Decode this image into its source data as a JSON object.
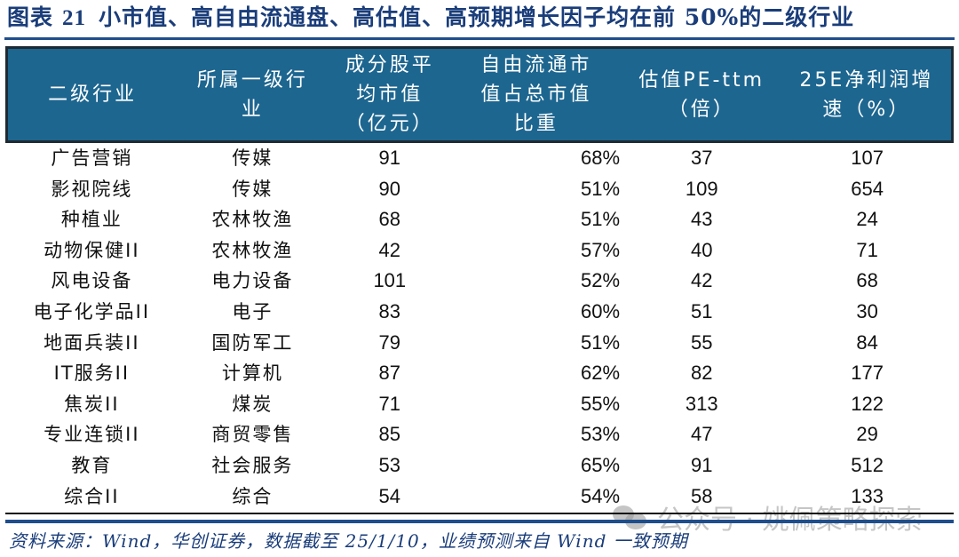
{
  "figure": {
    "label": "图表",
    "number": "21",
    "title": "小市值、高自由流通盘、高估值、高预期增长因子均在前 50%的二级行业"
  },
  "table": {
    "columns": [
      {
        "key": "industry_l2",
        "label": "二级行业"
      },
      {
        "key": "industry_l1",
        "label": "所属一级行业"
      },
      {
        "key": "avg_mcap",
        "label": "成分股平均市值（亿元）"
      },
      {
        "key": "free_float_ratio",
        "label": "自由流通市值占总市值比重"
      },
      {
        "key": "pe_ttm",
        "label": "估值PE-ttm（倍）"
      },
      {
        "key": "np_growth_25e",
        "label": "25E净利润增速（%）"
      }
    ],
    "header_lines": [
      [
        "二级行业"
      ],
      [
        "所属一级行",
        "业"
      ],
      [
        "成分股平",
        "均市值",
        "（亿元）"
      ],
      [
        "自由流通市",
        "值占总市值",
        "比重"
      ],
      [
        "估值PE-ttm",
        "（倍）"
      ],
      [
        "25E净利润增",
        "速（%）"
      ]
    ],
    "rows": [
      [
        "广告营销",
        "传媒",
        "91",
        "68%",
        "37",
        "107"
      ],
      [
        "影视院线",
        "传媒",
        "90",
        "51%",
        "109",
        "654"
      ],
      [
        "种植业",
        "农林牧渔",
        "68",
        "51%",
        "43",
        "24"
      ],
      [
        "动物保健II",
        "农林牧渔",
        "42",
        "57%",
        "40",
        "71"
      ],
      [
        "风电设备",
        "电力设备",
        "101",
        "52%",
        "42",
        "68"
      ],
      [
        "电子化学品II",
        "电子",
        "83",
        "60%",
        "51",
        "30"
      ],
      [
        "地面兵装II",
        "国防军工",
        "79",
        "51%",
        "55",
        "84"
      ],
      [
        "IT服务II",
        "计算机",
        "87",
        "62%",
        "82",
        "177"
      ],
      [
        "焦炭II",
        "煤炭",
        "71",
        "55%",
        "313",
        "122"
      ],
      [
        "专业连锁II",
        "商贸零售",
        "85",
        "53%",
        "47",
        "29"
      ],
      [
        "教育",
        "社会服务",
        "53",
        "65%",
        "91",
        "512"
      ],
      [
        "综合II",
        "综合",
        "54",
        "54%",
        "58",
        "133"
      ]
    ]
  },
  "source": "资料来源：Wind，华创证券，数据截至 25/1/10，业绩预测来自 Wind 一致预期",
  "watermark": "公众号 · 姚佩策略探索",
  "colors": {
    "title": "#1a3d7a",
    "header_bg": "#1d6690",
    "rule": "#1f4e8c"
  }
}
